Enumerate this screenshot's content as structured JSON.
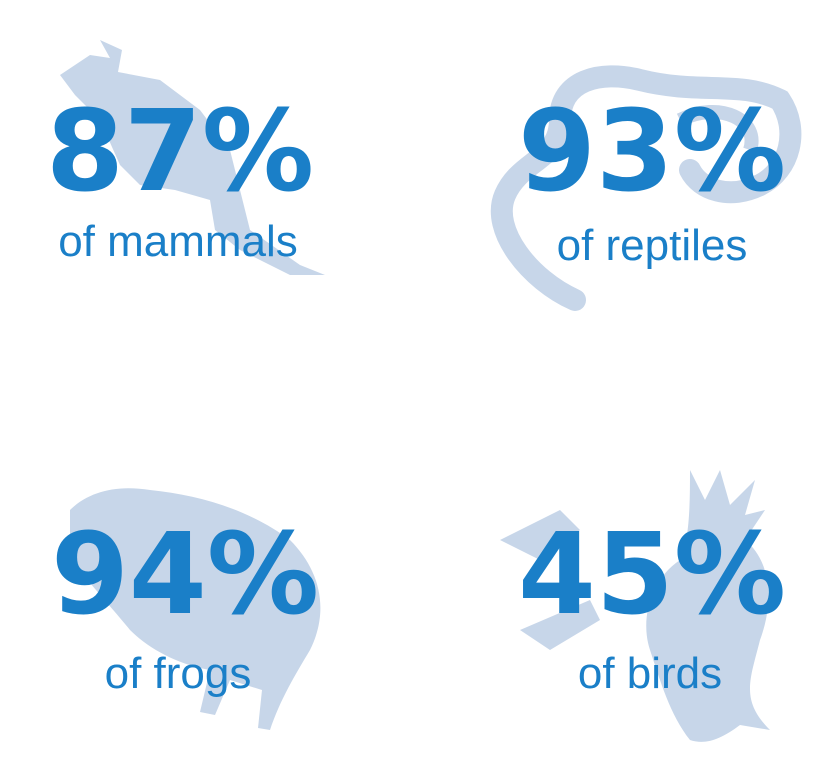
{
  "stats": [
    {
      "value": "87%",
      "label": "of mammals"
    },
    {
      "value": "93%",
      "label": "of reptiles"
    },
    {
      "value": "94%",
      "label": "of frogs"
    },
    {
      "value": "45%",
      "label": "of birds"
    }
  ]
}
